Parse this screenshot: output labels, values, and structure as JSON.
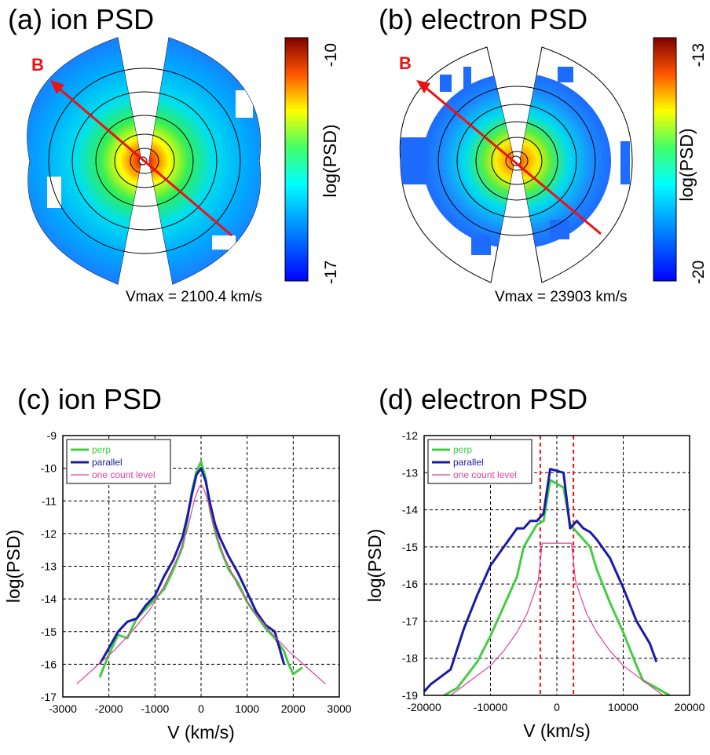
{
  "panels": {
    "a": {
      "title": "(a) ion PSD",
      "vmax": "Vmax = 2100.4 km/s",
      "b_label": "B",
      "colorbar_label": "log(PSD)",
      "cb_max": "-10",
      "cb_min": "-17"
    },
    "b": {
      "title": "(b) electron PSD",
      "vmax": "Vmax = 23903 km/s",
      "b_label": "B",
      "colorbar_label": "log(PSD)",
      "cb_max": "-13",
      "cb_min": "-20"
    },
    "c": {
      "title": "(c) ion PSD"
    },
    "d": {
      "title": "(d) electron PSD"
    }
  },
  "colors": {
    "perp": "#44cc44",
    "parallel": "#1a1aa8",
    "one_count": "#e0429a",
    "b_arrow": "#ee1111",
    "field": "#2a8fff",
    "guide": "#ee1111"
  },
  "chart_data": [
    {
      "type": "line",
      "title": "(c) ion PSD",
      "xlabel": "V (km/s)",
      "ylabel": "log(PSD)",
      "xlim": [
        -3000,
        3000
      ],
      "ylim": [
        -17,
        -9
      ],
      "xticks": [
        "-3000",
        "-2000",
        "-1000",
        "0",
        "1000",
        "2000",
        "3000"
      ],
      "yticks": [
        "-9",
        "-10",
        "-11",
        "-12",
        "-13",
        "-14",
        "-15",
        "-16",
        "-17"
      ],
      "grid": true,
      "legend_position": "top-left",
      "series": [
        {
          "name": "perp",
          "x": [
            -2200,
            -2000,
            -1800,
            -1600,
            -1400,
            -1200,
            -1000,
            -800,
            -600,
            -400,
            -300,
            -200,
            -100,
            0,
            100,
            200,
            300,
            400,
            600,
            800,
            1000,
            1200,
            1400,
            1600,
            1800,
            1900,
            2000,
            2200
          ],
          "y": [
            -16.4,
            -15.7,
            -15.1,
            -15.2,
            -14.6,
            -14.3,
            -14.0,
            -13.7,
            -13.1,
            -12.4,
            -11.6,
            -10.7,
            -10.1,
            -9.8,
            -10.3,
            -11.3,
            -11.9,
            -12.4,
            -13.1,
            -13.5,
            -14.1,
            -14.5,
            -14.9,
            -15.2,
            -15.6,
            -16.0,
            -16.3,
            -16.1
          ]
        },
        {
          "name": "parallel",
          "x": [
            -2200,
            -2000,
            -1800,
            -1600,
            -1400,
            -1200,
            -1000,
            -800,
            -600,
            -400,
            -300,
            -200,
            -100,
            0,
            100,
            200,
            300,
            400,
            600,
            800,
            1000,
            1200,
            1400,
            1600,
            1800
          ],
          "y": [
            -16.0,
            -15.5,
            -15.0,
            -14.7,
            -14.6,
            -14.2,
            -13.9,
            -13.3,
            -12.8,
            -12.1,
            -11.5,
            -10.8,
            -10.2,
            -10.0,
            -10.4,
            -11.1,
            -11.7,
            -12.1,
            -12.7,
            -13.2,
            -13.8,
            -14.4,
            -14.8,
            -15.0,
            -16.0
          ]
        },
        {
          "name": "one count level",
          "x": [
            -2700,
            -2300,
            -1900,
            -1500,
            -1100,
            -800,
            -500,
            -300,
            -150,
            -50,
            0,
            50,
            150,
            300,
            500,
            800,
            1100,
            1500,
            1900,
            2300,
            2700
          ],
          "y": [
            -16.6,
            -16.1,
            -15.6,
            -15.0,
            -14.3,
            -13.6,
            -12.7,
            -11.9,
            -11.0,
            -10.6,
            -10.5,
            -10.6,
            -11.0,
            -11.9,
            -12.7,
            -13.6,
            -14.3,
            -15.0,
            -15.6,
            -16.1,
            -16.6
          ]
        }
      ]
    },
    {
      "type": "line",
      "title": "(d) electron PSD",
      "xlabel": "V (km/s)",
      "ylabel": "log(PSD)",
      "xlim": [
        -20000,
        20000
      ],
      "ylim": [
        -19,
        -12
      ],
      "xticks": [
        "-20000",
        "-10000",
        "0",
        "10000",
        "20000"
      ],
      "yticks": [
        "-12",
        "-13",
        "-14",
        "-15",
        "-16",
        "-17",
        "-18",
        "-19"
      ],
      "grid": true,
      "legend_position": "top-left",
      "vlines": [
        -2500,
        2500
      ],
      "series": [
        {
          "name": "perp",
          "x": [
            -17000,
            -15000,
            -12000,
            -10000,
            -8000,
            -6000,
            -5000,
            -4000,
            -3000,
            -2000,
            -1000,
            1000,
            2000,
            3000,
            4000,
            5000,
            6000,
            8000,
            10000,
            12000,
            13000,
            15000,
            17000
          ],
          "y": [
            -19.0,
            -18.8,
            -18.1,
            -17.4,
            -16.6,
            -15.8,
            -15.0,
            -14.7,
            -14.4,
            -14.3,
            -13.2,
            -13.4,
            -14.4,
            -14.6,
            -14.8,
            -15.0,
            -15.6,
            -16.5,
            -17.3,
            -18.2,
            -18.6,
            -18.8,
            -19.0
          ]
        },
        {
          "name": "parallel",
          "x": [
            -20000,
            -19000,
            -16000,
            -14000,
            -12000,
            -10000,
            -8000,
            -6000,
            -5000,
            -4000,
            -3000,
            -2000,
            -1000,
            1000,
            2000,
            3000,
            4000,
            5000,
            6000,
            8000,
            10000,
            12000,
            14000,
            15000
          ],
          "y": [
            -18.9,
            -18.7,
            -18.3,
            -17.2,
            -16.3,
            -15.5,
            -15.0,
            -14.5,
            -14.5,
            -14.3,
            -14.3,
            -14.1,
            -12.9,
            -13.0,
            -14.5,
            -14.3,
            -14.5,
            -14.6,
            -14.8,
            -15.3,
            -16.1,
            -17.0,
            -17.6,
            -18.1
          ]
        },
        {
          "name": "one count level",
          "x": [
            -16000,
            -13000,
            -10000,
            -8000,
            -6000,
            -4500,
            -3500,
            -2800,
            -2200,
            2200,
            2800,
            3500,
            4500,
            6000,
            8000,
            10000,
            13000,
            16000
          ],
          "y": [
            -19.0,
            -18.6,
            -18.2,
            -17.8,
            -17.3,
            -16.8,
            -16.3,
            -15.9,
            -14.9,
            -14.9,
            -15.9,
            -16.3,
            -16.8,
            -17.3,
            -17.8,
            -18.2,
            -18.6,
            -19.0
          ]
        }
      ]
    }
  ]
}
